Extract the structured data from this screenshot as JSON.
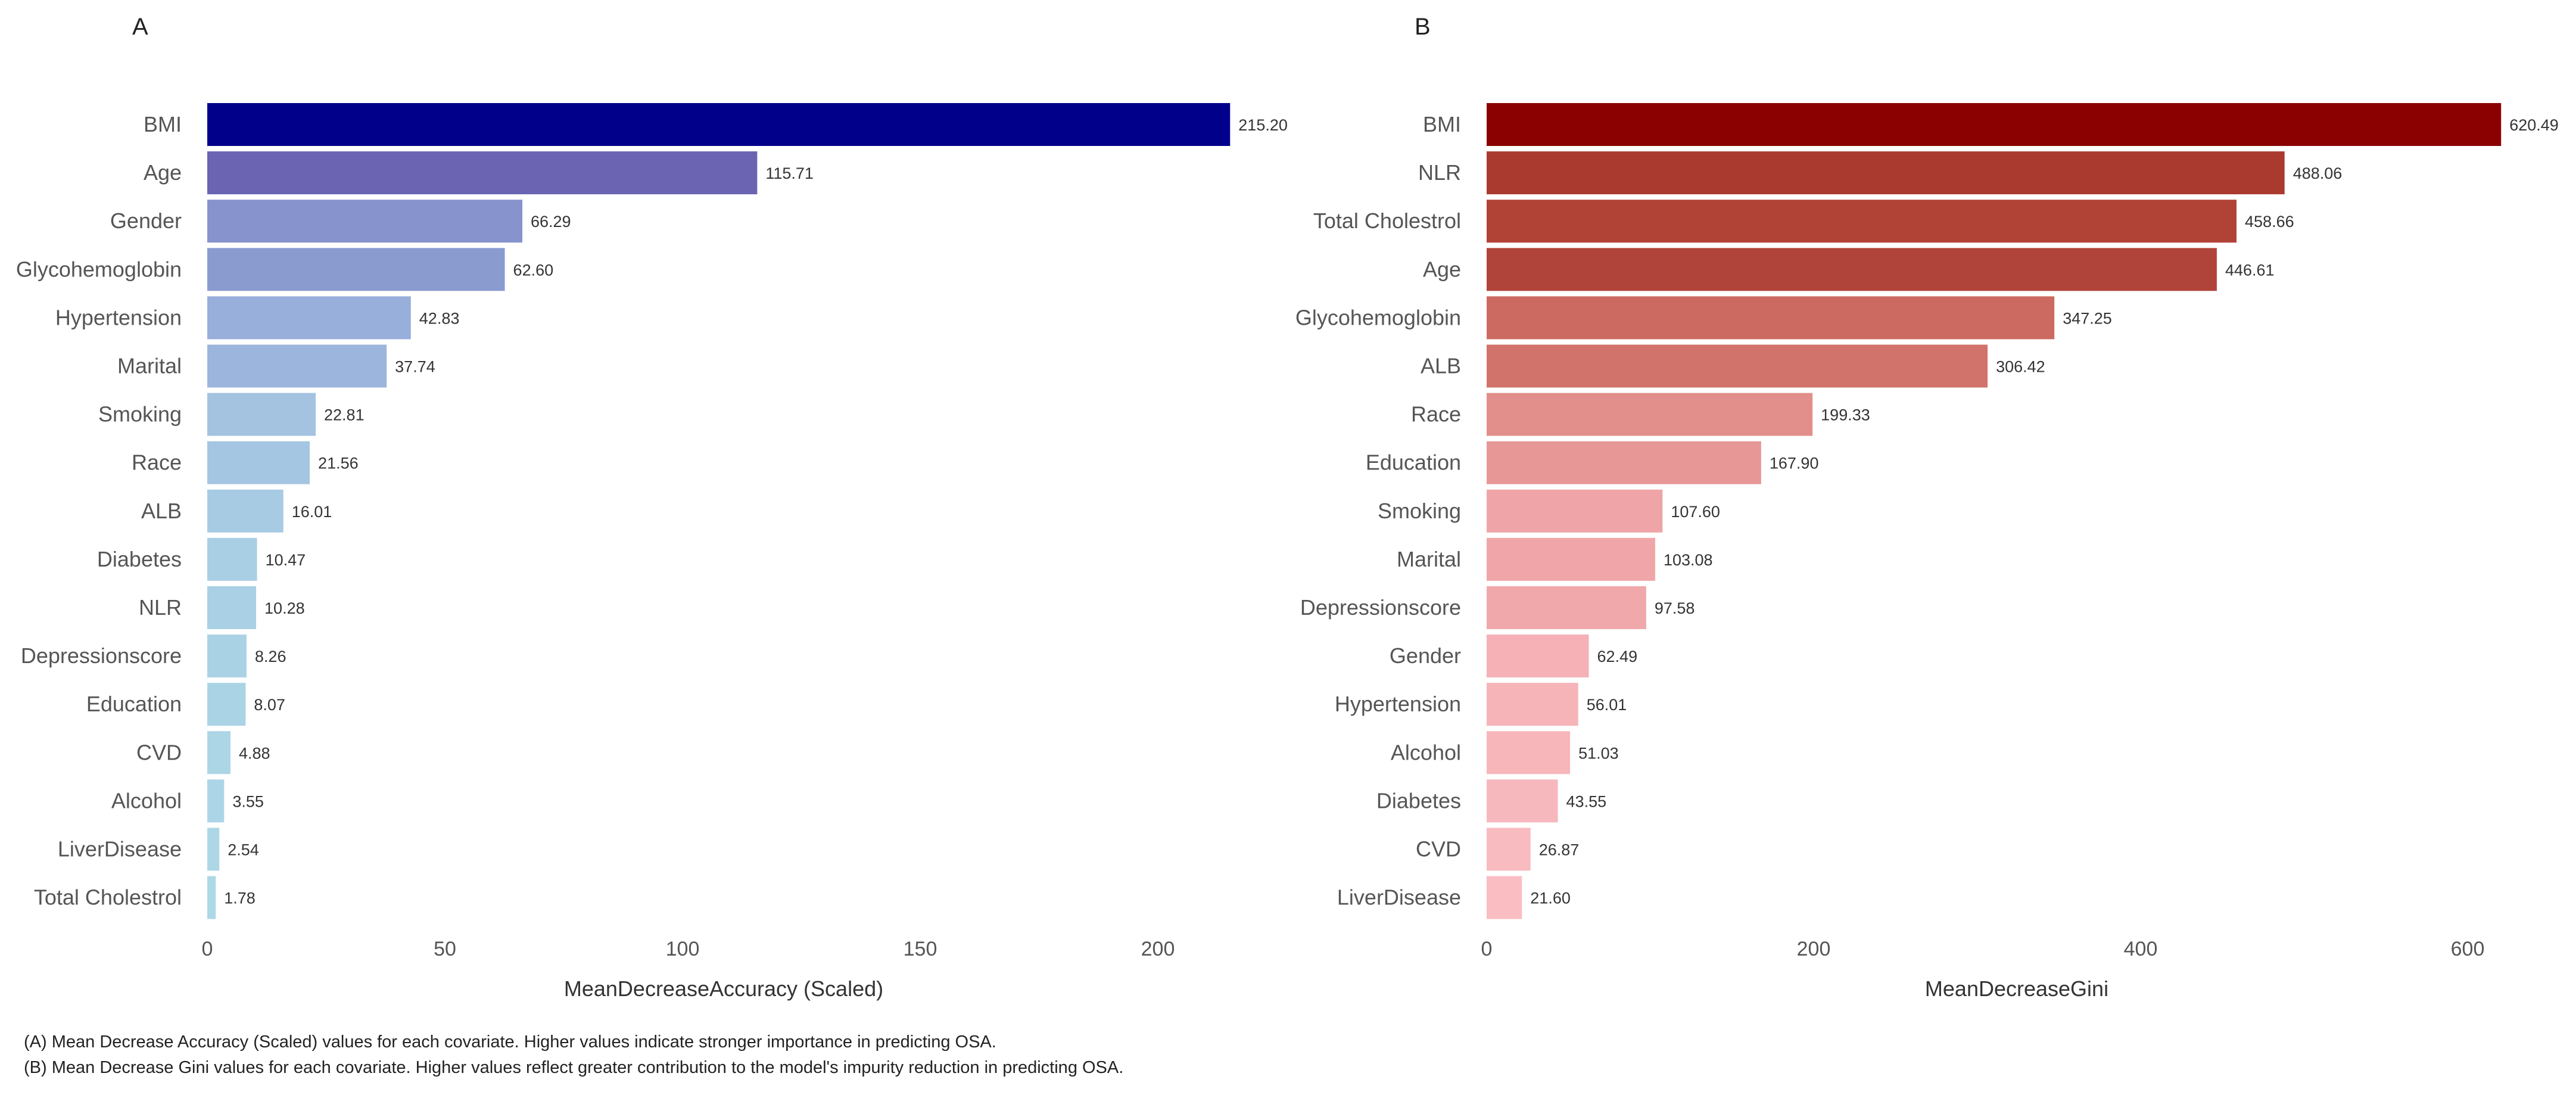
{
  "chart_data": [
    {
      "type": "bar",
      "orientation": "horizontal",
      "panel_label": "A",
      "xlabel": "MeanDecreaseAccuracy (Scaled)",
      "ylabel": "",
      "xlim": [
        0,
        220
      ],
      "xticks": [
        0,
        50,
        100,
        150,
        200
      ],
      "grid": false,
      "categories": [
        "BMI",
        "Age",
        "Gender",
        "Glycohemoglobin",
        "Hypertension",
        "Marital",
        "Smoking",
        "Race",
        "ALB",
        "Diabetes",
        "NLR",
        "Depressionscore",
        "Education",
        "CVD",
        "Alcohol",
        "LiverDisease",
        "Total Cholestrol"
      ],
      "values": [
        215.2,
        115.71,
        66.29,
        62.6,
        42.83,
        37.74,
        22.81,
        21.56,
        16.01,
        10.47,
        10.28,
        8.26,
        8.07,
        4.88,
        3.55,
        2.54,
        1.78
      ],
      "value_labels": [
        "215.20",
        "115.71",
        "66.29",
        "62.60",
        "42.83",
        "37.74",
        "22.81",
        "21.56",
        "16.01",
        "10.47",
        "10.28",
        "8.26",
        "8.07",
        "4.88",
        "3.55",
        "2.54",
        "1.78"
      ],
      "colors": [
        "#00008b",
        "#6a64b2",
        "#8793cc",
        "#8a9bd0",
        "#98aedb",
        "#9cb5dc",
        "#a3c3e0",
        "#a4c6e2",
        "#a7cbe3",
        "#a9cfe4",
        "#a9d0e5",
        "#aad2e5",
        "#aad3e6",
        "#acd5e6",
        "#acd6e7",
        "#add7e7",
        "#add8e6"
      ]
    },
    {
      "type": "bar",
      "orientation": "horizontal",
      "panel_label": "B",
      "xlabel": "MeanDecreaseGini",
      "ylabel": "",
      "xlim": [
        0,
        640
      ],
      "xticks": [
        0,
        200,
        400,
        600
      ],
      "grid": false,
      "categories": [
        "BMI",
        "NLR",
        "Total Cholestrol",
        "Age",
        "Glycohemoglobin",
        "ALB",
        "Race",
        "Education",
        "Smoking",
        "Marital",
        "Depressionscore",
        "Gender",
        "Hypertension",
        "Alcohol",
        "Diabetes",
        "CVD",
        "LiverDisease"
      ],
      "values": [
        620.49,
        488.06,
        458.66,
        446.61,
        347.25,
        306.42,
        199.33,
        167.9,
        107.6,
        103.08,
        97.58,
        62.49,
        56.01,
        51.03,
        43.55,
        26.87,
        21.6
      ],
      "value_labels": [
        "620.49",
        "488.06",
        "458.66",
        "446.61",
        "347.25",
        "306.42",
        "199.33",
        "167.90",
        "107.60",
        "103.08",
        "97.58",
        "62.49",
        "56.01",
        "51.03",
        "43.55",
        "26.87",
        "21.60"
      ],
      "colors": [
        "#8b0000",
        "#aa3a30",
        "#b14236",
        "#b1443a",
        "#cc6a62",
        "#d1736b",
        "#e28e8a",
        "#e89797",
        "#efa5a7",
        "#f0a6a8",
        "#f0a8aa",
        "#f5b1b6",
        "#f6b4b9",
        "#f7b6ba",
        "#f7b8bd",
        "#f8bbc0",
        "#f9bdc2"
      ]
    }
  ],
  "captions": {
    "a": "(A) Mean Decrease Accuracy (Scaled) values for each covariate. Higher values indicate stronger importance in predicting OSA.",
    "b": "(B) Mean Decrease Gini values for each covariate. Higher values reflect greater contribution to the model's impurity reduction in predicting OSA."
  }
}
